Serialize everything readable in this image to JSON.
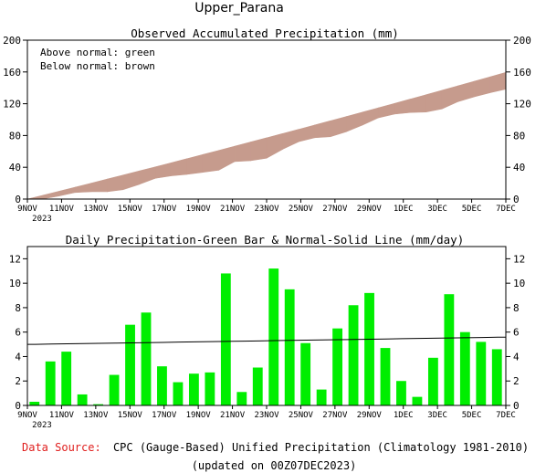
{
  "page": {
    "title": "Upper_Parana",
    "footer_source_label": "Data Source:",
    "footer_source_text": "CPC (Gauge-Based) Unified Precipitation (Climatology 1981-2010)",
    "footer_updated": "(updated on 00Z07DEC2023)"
  },
  "colors": {
    "below_normal": "#c69b8d",
    "above_normal": "#22aa22",
    "bar": "#00ee00",
    "normal_line": "#000000",
    "source_label": "#e0201f"
  },
  "chart_data": [
    {
      "type": "area",
      "title": "Observed Accumulated Precipitation (mm)",
      "legend": [
        "Above normal: green",
        "Below normal: brown"
      ],
      "legend_position": "top-left",
      "x_tick_labels": [
        "9NOV",
        "11NOV",
        "13NOV",
        "15NOV",
        "17NOV",
        "19NOV",
        "21NOV",
        "23NOV",
        "25NOV",
        "27NOV",
        "29NOV",
        "1DEC",
        "3DEC",
        "5DEC",
        "7DEC"
      ],
      "x_year_label": "2023",
      "ylim": [
        0,
        200
      ],
      "y_ticks": [
        0,
        40,
        80,
        120,
        160,
        200
      ],
      "grid": false,
      "days": [
        "8NOV",
        "9NOV",
        "10NOV",
        "11NOV",
        "12NOV",
        "13NOV",
        "14NOV",
        "15NOV",
        "16NOV",
        "17NOV",
        "18NOV",
        "19NOV",
        "20NOV",
        "21NOV",
        "22NOV",
        "23NOV",
        "24NOV",
        "25NOV",
        "26NOV",
        "27NOV",
        "28NOV",
        "29NOV",
        "30NOV",
        "1DEC",
        "2DEC",
        "3DEC",
        "4DEC",
        "5DEC",
        "6DEC",
        "7DEC"
      ],
      "series": [
        {
          "name": "Observed",
          "values": [
            0.3,
            3.9,
            8.3,
            9.2,
            9.3,
            11.8,
            18.4,
            26.0,
            29.2,
            31.1,
            33.7,
            36.4,
            47.2,
            48.3,
            51.4,
            62.6,
            72.1,
            77.2,
            78.5,
            84.8,
            93.0,
            102.2,
            106.9,
            108.9,
            109.6,
            113.5,
            122.6,
            128.6,
            133.8,
            138.4
          ]
        },
        {
          "name": "Normal",
          "values": [
            4.9,
            9.9,
            15.0,
            20.0,
            25.1,
            30.2,
            35.3,
            40.4,
            45.6,
            50.8,
            56.0,
            61.2,
            66.5,
            71.8,
            77.1,
            82.4,
            87.7,
            93.1,
            98.5,
            103.9,
            109.3,
            114.8,
            120.3,
            125.8,
            131.3,
            136.9,
            142.5,
            148.1,
            153.7,
            159.4
          ]
        }
      ]
    },
    {
      "type": "bar",
      "title": "Daily Precipitation-Green Bar & Normal-Solid Line (mm/day)",
      "x_tick_labels": [
        "9NOV",
        "11NOV",
        "13NOV",
        "15NOV",
        "17NOV",
        "19NOV",
        "21NOV",
        "23NOV",
        "25NOV",
        "27NOV",
        "29NOV",
        "1DEC",
        "3DEC",
        "5DEC",
        "7DEC"
      ],
      "x_year_label": "2023",
      "ylim": [
        0,
        13
      ],
      "y_ticks": [
        0,
        2,
        4,
        6,
        8,
        10,
        12
      ],
      "grid": false,
      "categories": [
        "8NOV",
        "9NOV",
        "10NOV",
        "11NOV",
        "12NOV",
        "13NOV",
        "14NOV",
        "15NOV",
        "16NOV",
        "17NOV",
        "18NOV",
        "19NOV",
        "20NOV",
        "21NOV",
        "22NOV",
        "23NOV",
        "24NOV",
        "25NOV",
        "26NOV",
        "27NOV",
        "28NOV",
        "29NOV",
        "30NOV",
        "1DEC",
        "2DEC",
        "3DEC",
        "4DEC",
        "5DEC",
        "6DEC",
        "7DEC"
      ],
      "series": [
        {
          "name": "Daily Precipitation",
          "values": [
            0.3,
            3.6,
            4.4,
            0.9,
            0.1,
            2.5,
            6.6,
            7.6,
            3.2,
            1.9,
            2.6,
            2.7,
            10.8,
            1.1,
            3.1,
            11.2,
            9.5,
            5.1,
            1.3,
            6.3,
            8.2,
            9.2,
            4.7,
            2.0,
            0.7,
            3.9,
            9.1,
            6.0,
            5.2,
            4.6
          ]
        },
        {
          "name": "Normal",
          "values": [
            5.0,
            5.02,
            5.04,
            5.06,
            5.08,
            5.1,
            5.12,
            5.14,
            5.16,
            5.18,
            5.2,
            5.22,
            5.24,
            5.26,
            5.28,
            5.3,
            5.32,
            5.34,
            5.36,
            5.38,
            5.4,
            5.42,
            5.44,
            5.46,
            5.48,
            5.5,
            5.52,
            5.54,
            5.56,
            5.58
          ]
        }
      ]
    }
  ]
}
